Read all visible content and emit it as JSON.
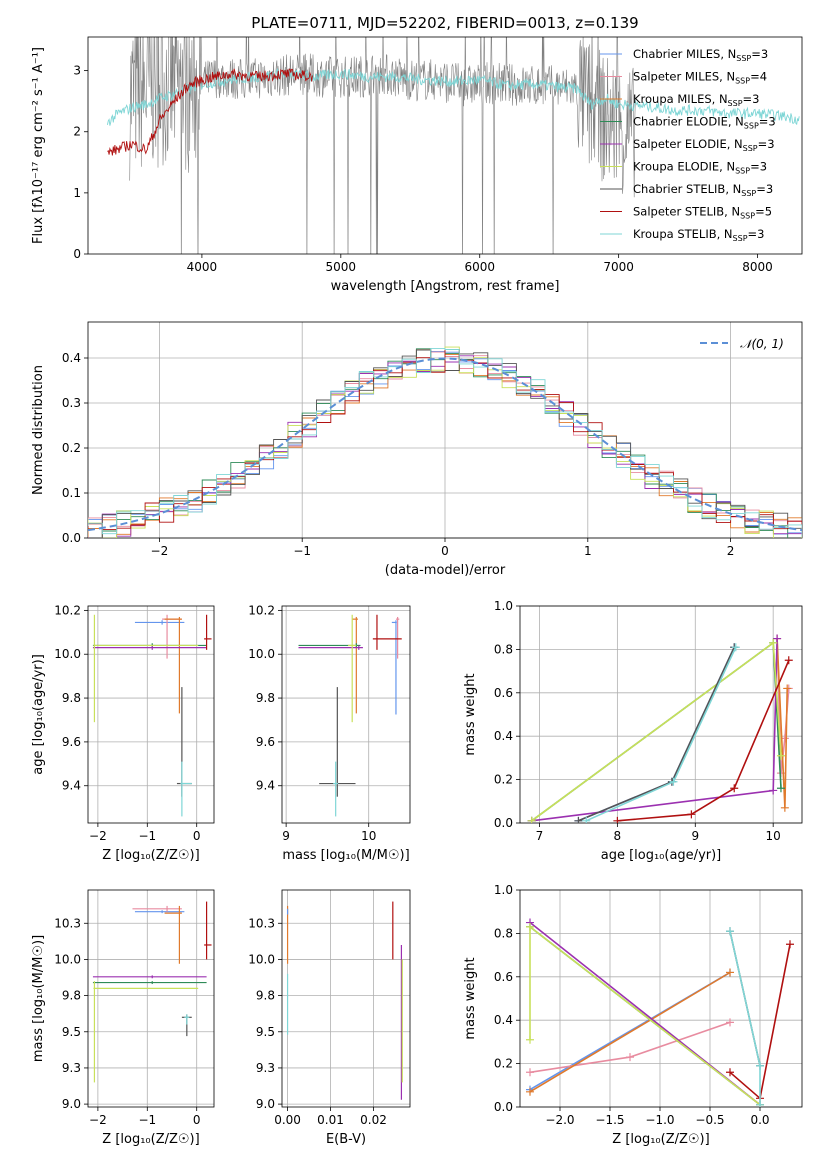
{
  "figure_title": "PLATE=0711, MJD=52202, FIBERID=0013, z=0.139",
  "colors": {
    "Chabrier MILES": "#6495ed",
    "Salpeter MILES": "#e88ca0",
    "Kroupa MILES": "#e07a2c",
    "Chabrier ELODIE": "#2e8b57",
    "Salpeter ELODIE": "#9b30b0",
    "Kroupa ELODIE": "#c8e05a",
    "Chabrier STELIB": "#555555",
    "Salpeter STELIB": "#b01010",
    "Kroupa STELIB": "#7fd6d6"
  },
  "chart_data": [
    {
      "id": "spectrum",
      "type": "line",
      "title": "PLATE=0711, MJD=52202, FIBERID=0013, z=0.139",
      "xlabel": "wavelength [Angstrom, rest frame]",
      "ylabel": "Flux [fλ10⁻¹⁷ erg cm⁻² s⁻¹ A⁻¹]",
      "xlim": [
        3180,
        8320
      ],
      "ylim": [
        0,
        3.55
      ],
      "xticks": [
        4000,
        5000,
        6000,
        7000,
        8000
      ],
      "yticks": [
        0,
        1,
        2,
        3
      ],
      "grid": false,
      "legend_position": "upper right",
      "legend": [
        {
          "label": "Chabrier MILES, N",
          "sub": "SSP",
          "suffix": "=3",
          "series": "Chabrier MILES"
        },
        {
          "label": "Salpeter MILES, N",
          "sub": "SSP",
          "suffix": "=4",
          "series": "Salpeter MILES"
        },
        {
          "label": "Kroupa MILES, N",
          "sub": "SSP",
          "suffix": "=3",
          "series": "Kroupa MILES"
        },
        {
          "label": "Chabrier ELODIE, N",
          "sub": "SSP",
          "suffix": "=3",
          "series": "Chabrier ELODIE"
        },
        {
          "label": "Salpeter ELODIE, N",
          "sub": "SSP",
          "suffix": "=3",
          "series": "Salpeter ELODIE"
        },
        {
          "label": "Kroupa ELODIE, N",
          "sub": "SSP",
          "suffix": "=3",
          "series": "Kroupa ELODIE"
        },
        {
          "label": "Chabrier STELIB, N",
          "sub": "SSP",
          "suffix": "=3",
          "series": "Chabrier STELIB"
        },
        {
          "label": "Salpeter STELIB, N",
          "sub": "SSP",
          "suffix": "=5",
          "series": "Salpeter STELIB"
        },
        {
          "label": "Kroupa STELIB, N",
          "sub": "SSP",
          "suffix": "=3",
          "series": "Kroupa STELIB"
        }
      ],
      "data_series": {
        "name": "data",
        "color": "#808080",
        "x": [
          3500,
          3700,
          3900,
          4100,
          4300,
          4500,
          4700,
          4900,
          5100,
          5300,
          5500,
          5700,
          5900,
          6100,
          6300,
          6500,
          6700,
          6800,
          6900,
          7000,
          7100
        ],
        "y": [
          2.6,
          2.8,
          2.7,
          2.9,
          2.85,
          2.9,
          2.95,
          2.9,
          2.9,
          2.95,
          2.85,
          2.85,
          2.75,
          2.8,
          2.75,
          2.75,
          2.7,
          2.4,
          2.2,
          2.1,
          2.0
        ]
      },
      "model_series": [
        {
          "name": "Kroupa STELIB",
          "x": [
            3320,
            3400,
            3500,
            3600,
            3700,
            3800,
            3900,
            4000,
            4200,
            4400,
            4600,
            4800,
            5000,
            5200,
            5400,
            5600,
            5800,
            6000,
            6200,
            6400,
            6600,
            6700,
            6800,
            6900,
            7000,
            7200,
            7400,
            7600,
            7800,
            8000,
            8200,
            8300
          ],
          "y": [
            2.15,
            2.3,
            2.4,
            2.45,
            2.55,
            2.62,
            2.7,
            2.78,
            2.85,
            2.9,
            2.95,
            2.9,
            2.95,
            2.9,
            2.9,
            2.85,
            2.82,
            2.85,
            2.75,
            2.78,
            2.72,
            2.7,
            2.45,
            2.55,
            2.45,
            2.42,
            2.35,
            2.35,
            2.3,
            2.3,
            2.25,
            2.2
          ]
        },
        {
          "name": "Salpeter STELIB",
          "x": [
            3320,
            3400,
            3500,
            3600,
            3700,
            3800,
            3900,
            4000,
            4100,
            4200,
            4400,
            4600,
            4800
          ],
          "y": [
            1.65,
            1.72,
            1.8,
            1.7,
            2.2,
            2.5,
            2.75,
            2.85,
            2.9,
            2.95,
            2.9,
            2.95,
            2.9
          ]
        }
      ]
    },
    {
      "id": "residuals",
      "type": "line",
      "xlabel": "(data-model)/error",
      "ylabel": "Normed distribution",
      "xlim": [
        -2.5,
        2.5
      ],
      "ylim": [
        0,
        0.48
      ],
      "xticks": [
        -2,
        -1,
        0,
        1,
        2
      ],
      "yticks": [
        0.0,
        0.1,
        0.2,
        0.3,
        0.4
      ],
      "grid": true,
      "legend_position": "upper right",
      "legend": "𝒩(0, 1)",
      "curve": {
        "name": "𝒩(0, 1)",
        "color": "#5b8fd6",
        "style": "dashed"
      }
    },
    {
      "id": "age-vs-Z",
      "type": "scatter",
      "xlabel": "Z [log₁₀(Z/Z☉)]",
      "ylabel": "age  [log₁₀(age/yr)]",
      "xlim": [
        -2.2,
        0.35
      ],
      "ylim": [
        9.23,
        10.22
      ],
      "xticks": [
        -2,
        -1,
        0
      ],
      "yticks": [
        9.4,
        9.6,
        9.8,
        10.0,
        10.2
      ],
      "grid": true,
      "points": [
        {
          "series": "Chabrier MILES",
          "x": -0.7,
          "y": 10.145,
          "xerr": [
            0.55,
            0.45
          ],
          "yerr": [
            0.01,
            0.01
          ]
        },
        {
          "series": "Salpeter MILES",
          "x": -0.6,
          "y": 10.16,
          "xerr": [
            0.1,
            0.3
          ],
          "yerr": [
            0.18,
            0.02
          ]
        },
        {
          "series": "Kroupa MILES",
          "x": -0.35,
          "y": 10.16,
          "xerr": [
            0.3,
            0.05
          ],
          "yerr": [
            0.43,
            0.01
          ]
        },
        {
          "series": "Chabrier ELODIE",
          "x": -0.9,
          "y": 10.04,
          "xerr": [
            1.2,
            1.1
          ],
          "yerr": [
            0.01,
            0.01
          ]
        },
        {
          "series": "Salpeter ELODIE",
          "x": -0.9,
          "y": 10.03,
          "xerr": [
            1.2,
            1.1
          ],
          "yerr": [
            0.01,
            0.01
          ]
        },
        {
          "series": "Kroupa ELODIE",
          "x": -2.07,
          "y": 10.04,
          "xerr": [
            0.02,
            2.1
          ],
          "yerr": [
            0.35,
            0.14
          ]
        },
        {
          "series": "Chabrier STELIB",
          "x": -0.3,
          "y": 9.41,
          "xerr": [
            0.1,
            0.2
          ],
          "yerr": [
            0.06,
            0.44
          ]
        },
        {
          "series": "Salpeter STELIB",
          "x": 0.2,
          "y": 10.07,
          "xerr": [
            0.05,
            0.1
          ],
          "yerr": [
            0.05,
            0.11
          ]
        },
        {
          "series": "Kroupa STELIB",
          "x": -0.3,
          "y": 9.41,
          "xerr": [
            0.03,
            0.2
          ],
          "yerr": [
            0.15,
            0.1
          ]
        }
      ]
    },
    {
      "id": "age-vs-mass",
      "type": "scatter",
      "xlabel": "mass [log₁₀(M/M☉)]",
      "ylabel": "",
      "xlim": [
        8.95,
        10.5
      ],
      "ylim": [
        9.23,
        10.22
      ],
      "xticks": [
        9,
        10
      ],
      "yticks": [
        9.4,
        9.6,
        9.8,
        10.0,
        10.2
      ],
      "grid": true,
      "points": [
        {
          "series": "Chabrier MILES",
          "x": 10.33,
          "y": 10.145,
          "xerr": [
            0.05,
            0.01
          ],
          "yerr": [
            0.42,
            0.01
          ]
        },
        {
          "series": "Salpeter MILES",
          "x": 10.35,
          "y": 10.16,
          "xerr": [
            0.02,
            0.02
          ],
          "yerr": [
            0.18,
            0.01
          ]
        },
        {
          "series": "Kroupa MILES",
          "x": 9.85,
          "y": 10.16,
          "xerr": [
            0.05,
            0.02
          ],
          "yerr": [
            0.43,
            0.01
          ]
        },
        {
          "series": "Chabrier ELODIE",
          "x": 9.85,
          "y": 10.04,
          "xerr": [
            0.7,
            0.05
          ],
          "yerr": [
            0.01,
            0.01
          ]
        },
        {
          "series": "Salpeter ELODIE",
          "x": 9.88,
          "y": 10.03,
          "xerr": [
            0.73,
            0.05
          ],
          "yerr": [
            0.01,
            0.01
          ]
        },
        {
          "series": "Kroupa ELODIE",
          "x": 9.8,
          "y": 10.04,
          "xerr": [
            0.05,
            0.05
          ],
          "yerr": [
            0.35,
            0.14
          ]
        },
        {
          "series": "Chabrier STELIB",
          "x": 9.62,
          "y": 9.41,
          "xerr": [
            0.22,
            0.22
          ],
          "yerr": [
            0.06,
            0.44
          ]
        },
        {
          "series": "Salpeter STELIB",
          "x": 10.1,
          "y": 10.07,
          "xerr": [
            0.05,
            0.3
          ],
          "yerr": [
            0.05,
            0.11
          ]
        },
        {
          "series": "Kroupa STELIB",
          "x": 9.6,
          "y": 9.41,
          "xerr": [
            0.03,
            0.03
          ],
          "yerr": [
            0.15,
            0.1
          ]
        }
      ]
    },
    {
      "id": "weight-vs-age",
      "type": "line",
      "xlabel": "age  [log₁₀(age/yr)]",
      "ylabel": "mass weight",
      "xlim": [
        6.75,
        10.37
      ],
      "ylim": [
        0,
        1.0
      ],
      "xticks": [
        7,
        8,
        9,
        10
      ],
      "yticks": [
        0.0,
        0.2,
        0.4,
        0.6,
        0.8,
        1.0
      ],
      "grid": true,
      "series": [
        {
          "name": "Chabrier MILES",
          "x": [
            7.5,
            8.7,
            9.5
          ],
          "y": [
            0.01,
            0.19,
            0.81
          ]
        },
        {
          "name": "Salpeter MILES",
          "x": [
            10.05,
            10.1,
            10.15,
            10.2
          ],
          "y": [
            0.85,
            0.23,
            0.39,
            0.62
          ]
        },
        {
          "name": "Kroupa MILES",
          "x": [
            10.05,
            10.15,
            10.18
          ],
          "y": [
            0.85,
            0.07,
            0.62
          ]
        },
        {
          "name": "Chabrier ELODIE",
          "x": [
            6.9,
            10.0,
            10.1
          ],
          "y": [
            0.01,
            0.83,
            0.16
          ]
        },
        {
          "name": "Salpeter ELODIE",
          "x": [
            6.9,
            10.0,
            10.05
          ],
          "y": [
            0.01,
            0.15,
            0.85
          ]
        },
        {
          "name": "Kroupa ELODIE",
          "x": [
            6.9,
            10.0,
            10.1
          ],
          "y": [
            0.01,
            0.83,
            0.31
          ]
        },
        {
          "name": "Chabrier STELIB",
          "x": [
            7.5,
            8.7,
            9.5
          ],
          "y": [
            0.01,
            0.19,
            0.81
          ]
        },
        {
          "name": "Salpeter STELIB",
          "x": [
            8.0,
            8.95,
            9.5,
            10.2
          ],
          "y": [
            0.01,
            0.04,
            0.16,
            0.75
          ]
        },
        {
          "name": "Kroupa STELIB",
          "x": [
            7.6,
            8.72,
            9.52
          ],
          "y": [
            0.01,
            0.19,
            0.81
          ]
        }
      ]
    },
    {
      "id": "mass-vs-Z",
      "type": "scatter",
      "xlabel": "Z [log₁₀(Z/Z☉)]",
      "ylabel": "mass [log₁₀(M/M☉)]",
      "xlim": [
        -2.2,
        0.35
      ],
      "ylim": [
        8.98,
        10.48
      ],
      "xticks": [
        -2,
        -1,
        0
      ],
      "yticks": [
        9.0,
        9.25,
        9.5,
        9.75,
        10.0,
        10.25
      ],
      "grid": true,
      "points": [
        {
          "series": "Chabrier MILES",
          "x": -0.7,
          "y": 10.33,
          "xerr": [
            0.55,
            0.45
          ],
          "yerr": [
            0.01,
            0.01
          ]
        },
        {
          "series": "Salpeter MILES",
          "x": -0.6,
          "y": 10.35,
          "xerr": [
            0.7,
            0.3
          ],
          "yerr": [
            0.02,
            0.02
          ]
        },
        {
          "series": "Kroupa MILES",
          "x": -0.35,
          "y": 10.32,
          "xerr": [
            0.3,
            0.05
          ],
          "yerr": [
            0.35,
            0.05
          ]
        },
        {
          "series": "Chabrier ELODIE",
          "x": -0.9,
          "y": 9.84,
          "xerr": [
            1.2,
            1.1
          ],
          "yerr": [
            0.01,
            0.01
          ]
        },
        {
          "series": "Salpeter ELODIE",
          "x": -0.9,
          "y": 9.88,
          "xerr": [
            1.2,
            1.1
          ],
          "yerr": [
            0.01,
            0.01
          ]
        },
        {
          "series": "Kroupa ELODIE",
          "x": -2.07,
          "y": 9.8,
          "xerr": [
            0.02,
            2.1
          ],
          "yerr": [
            0.65,
            0.05
          ]
        },
        {
          "series": "Chabrier STELIB",
          "x": -0.2,
          "y": 9.6,
          "xerr": [
            0.1,
            0.1
          ],
          "yerr": [
            0.13,
            0.02
          ]
        },
        {
          "series": "Salpeter STELIB",
          "x": 0.2,
          "y": 10.1,
          "xerr": [
            0.05,
            0.1
          ],
          "yerr": [
            0.1,
            0.3
          ]
        },
        {
          "series": "Kroupa STELIB",
          "x": -0.2,
          "y": 9.6,
          "xerr": [
            0.05,
            0.05
          ],
          "yerr": [
            0.05,
            0.02
          ]
        }
      ]
    },
    {
      "id": "mass-vs-ebv",
      "type": "scatter",
      "xlabel": "E(B-V)",
      "ylabel": "",
      "xlim": [
        -0.0013,
        0.0285
      ],
      "ylim": [
        8.98,
        10.48
      ],
      "xticks": [
        0.0,
        0.01,
        0.02
      ],
      "xticklabels": [
        "0.00",
        "0.01",
        "0.02"
      ],
      "yticks": [
        9.0,
        9.25,
        9.5,
        9.75,
        10.0,
        10.25
      ],
      "grid": true,
      "points": [
        {
          "series": "Kroupa MILES",
          "x": 0.0,
          "y": 10.32,
          "xerr": [
            0.0,
            0.0
          ],
          "yerr": [
            0.35,
            0.05
          ]
        },
        {
          "series": "Chabrier MILES",
          "x": 0.0,
          "y": 10.33,
          "xerr": [
            0.0,
            0.0
          ],
          "yerr": [
            0.02,
            0.02
          ]
        },
        {
          "series": "Kroupa STELIB",
          "x": 0.0,
          "y": 9.6,
          "xerr": [
            0.0,
            0.0
          ],
          "yerr": [
            0.12,
            0.3
          ]
        },
        {
          "series": "Salpeter STELIB",
          "x": 0.0245,
          "y": 10.1,
          "xerr": [
            0.0,
            0.0
          ],
          "yerr": [
            0.1,
            0.3
          ]
        },
        {
          "series": "Salpeter ELODIE",
          "x": 0.0265,
          "y": 9.88,
          "xerr": [
            0.0,
            0.0
          ],
          "yerr": [
            0.85,
            0.22
          ]
        },
        {
          "series": "Kroupa ELODIE",
          "x": 0.0267,
          "y": 9.8,
          "xerr": [
            0.0,
            0.0
          ],
          "yerr": [
            0.65,
            0.2
          ]
        }
      ]
    },
    {
      "id": "weight-vs-Z",
      "type": "line",
      "xlabel": "Z [log₁₀(Z/Z☉)]",
      "ylabel": "mass weight",
      "xlim": [
        -2.4,
        0.42
      ],
      "ylim": [
        0,
        1.0
      ],
      "xticks": [
        -2.0,
        -1.5,
        -1.0,
        -0.5,
        0.0
      ],
      "yticks": [
        0.0,
        0.2,
        0.4,
        0.6,
        0.8,
        1.0
      ],
      "grid": true,
      "series": [
        {
          "name": "Chabrier MILES",
          "x": [
            -2.3,
            -0.3
          ],
          "y": [
            0.08,
            0.62
          ]
        },
        {
          "name": "Salpeter MILES",
          "x": [
            -2.3,
            -1.3,
            -0.3
          ],
          "y": [
            0.16,
            0.23,
            0.39
          ]
        },
        {
          "name": "Kroupa MILES",
          "x": [
            -2.3,
            -0.3
          ],
          "y": [
            0.07,
            0.62
          ]
        },
        {
          "name": "Chabrier ELODIE",
          "x": [
            -2.3,
            0.0
          ],
          "y": [
            0.83,
            0.01
          ]
        },
        {
          "name": "Salpeter ELODIE",
          "x": [
            -2.3,
            0.0
          ],
          "y": [
            0.85,
            0.01
          ]
        },
        {
          "name": "Kroupa ELODIE",
          "x": [
            -2.3,
            -2.3,
            0.0
          ],
          "y": [
            0.31,
            0.83,
            0.01
          ]
        },
        {
          "name": "Chabrier STELIB",
          "x": [
            -0.3,
            0.0
          ],
          "y": [
            0.81,
            0.19
          ]
        },
        {
          "name": "Salpeter STELIB",
          "x": [
            -0.3,
            0.0,
            0.3
          ],
          "y": [
            0.16,
            0.04,
            0.75
          ]
        },
        {
          "name": "Kroupa STELIB",
          "x": [
            -0.3,
            0.0,
            0.0
          ],
          "y": [
            0.81,
            0.19,
            0.01
          ]
        }
      ]
    }
  ]
}
